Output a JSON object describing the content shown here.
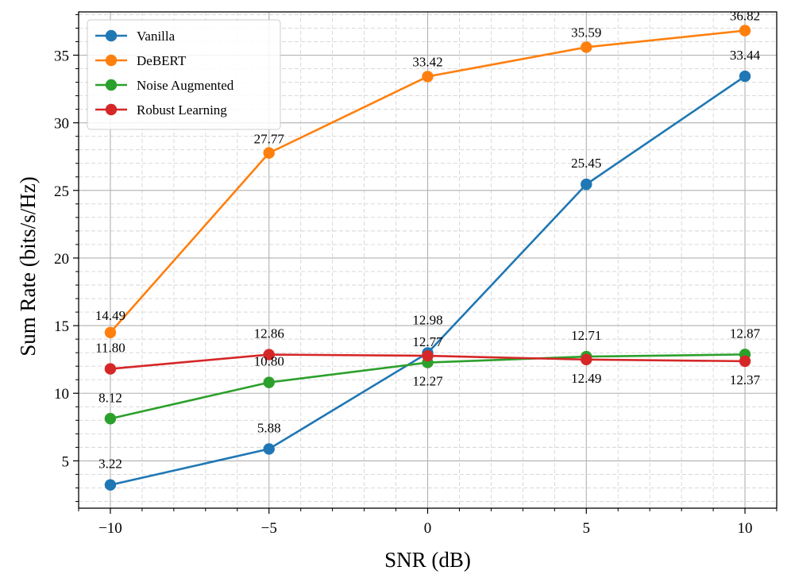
{
  "chart_data": {
    "type": "line",
    "title": "",
    "xlabel": "SNR (dB)",
    "ylabel": "Sum Rate (bits/s/Hz)",
    "x": [
      -10,
      -5,
      0,
      5,
      10
    ],
    "x_ticks": [
      -10,
      -5,
      0,
      5,
      10
    ],
    "x_tick_labels": [
      "−10",
      "−5",
      "0",
      "5",
      "10"
    ],
    "y_ticks": [
      5,
      10,
      15,
      20,
      25,
      30,
      35
    ],
    "y_tick_labels": [
      "5",
      "10",
      "15",
      "20",
      "25",
      "30",
      "35"
    ],
    "xlim": [
      -11,
      11
    ],
    "ylim": [
      1.5,
      38.2
    ],
    "grid": true,
    "legend_position": "top-left",
    "series": [
      {
        "name": "Vanilla",
        "color": "#1f77b4",
        "values": [
          3.22,
          5.88,
          12.98,
          25.45,
          33.44
        ],
        "labels": [
          "3.22",
          "5.88",
          "12.98",
          "25.45",
          "33.44"
        ]
      },
      {
        "name": "DeBERT",
        "color": "#ff7f0e",
        "values": [
          14.49,
          27.77,
          33.42,
          35.59,
          36.82
        ],
        "labels": [
          "14.49",
          "27.77",
          "33.42",
          "35.59",
          "36.82"
        ]
      },
      {
        "name": "Noise Augmented",
        "color": "#2ca02c",
        "values": [
          8.12,
          10.8,
          12.27,
          12.71,
          12.87
        ],
        "labels": [
          "8.12",
          "10.80",
          "12.27",
          "12.71",
          "12.87"
        ]
      },
      {
        "name": "Robust Learning",
        "color": "#d62728",
        "values": [
          11.8,
          12.86,
          12.77,
          12.49,
          12.37
        ],
        "labels": [
          "11.80",
          "12.86",
          "12.77",
          "12.49",
          "12.37"
        ]
      }
    ]
  }
}
